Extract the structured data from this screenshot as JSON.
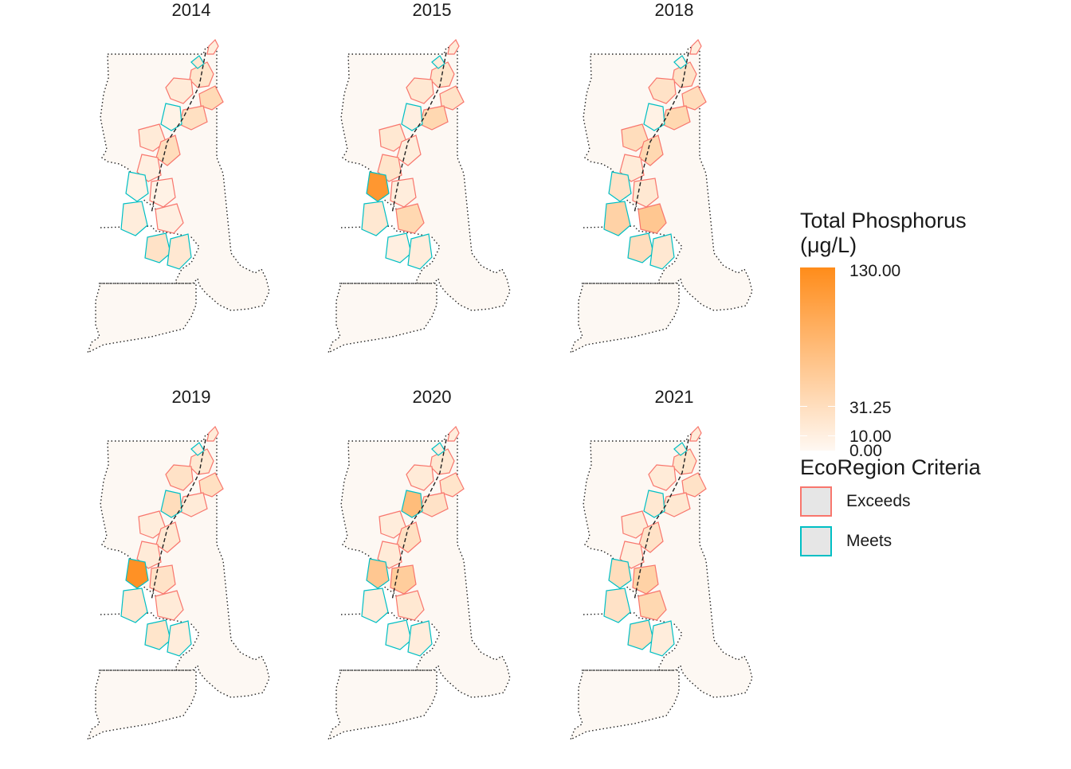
{
  "panels": [
    {
      "year": "2014",
      "fills": {
        "n1": 0.1,
        "n2": 0.18,
        "n3": 0.28,
        "n4": 0.15,
        "n5": 0.12,
        "n6": 0.22,
        "n7": 0.05,
        "n8": 0.12,
        "n9": 0.25,
        "n10": 0.08,
        "s1": 0.05,
        "s2": 0.06,
        "s3": 0.1,
        "s4": 0.08,
        "s5": 0.2,
        "s6": 0.15
      }
    },
    {
      "year": "2015",
      "fills": {
        "n1": 0.12,
        "n2": 0.18,
        "n3": 0.2,
        "n4": 0.1,
        "n5": 0.15,
        "n6": 0.3,
        "n7": 0.08,
        "n8": 0.15,
        "n9": 0.1,
        "n10": 0.18,
        "s1": 0.9,
        "s2": 0.1,
        "s3": 0.15,
        "s4": 0.3,
        "s5": 0.08,
        "s6": 0.1
      }
    },
    {
      "year": "2018",
      "fills": {
        "n1": 0.1,
        "n2": 0.2,
        "n3": 0.25,
        "n4": 0.05,
        "n5": 0.2,
        "n6": 0.3,
        "n7": 0.06,
        "n8": 0.25,
        "n9": 0.3,
        "n10": 0.12,
        "s1": 0.2,
        "s2": 0.15,
        "s3": 0.35,
        "s4": 0.45,
        "s5": 0.25,
        "s6": 0.15
      }
    },
    {
      "year": "2019",
      "fills": {
        "n1": 0.12,
        "n2": 0.15,
        "n3": 0.22,
        "n4": 0.08,
        "n5": 0.2,
        "n6": 0.12,
        "n7": 0.25,
        "n8": 0.1,
        "n9": 0.15,
        "n10": 0.12,
        "s1": 0.95,
        "s2": 0.2,
        "s3": 0.15,
        "s4": 0.12,
        "s5": 0.18,
        "s6": 0.1
      }
    },
    {
      "year": "2020",
      "fills": {
        "n1": 0.1,
        "n2": 0.15,
        "n3": 0.18,
        "n4": 0.1,
        "n5": 0.12,
        "n6": 0.2,
        "n7": 0.55,
        "n8": 0.1,
        "n9": 0.22,
        "n10": 0.12,
        "s1": 0.45,
        "s2": 0.4,
        "s3": 0.1,
        "s4": 0.15,
        "s5": 0.08,
        "s6": 0.1
      }
    },
    {
      "year": "2021",
      "fills": {
        "n1": 0.12,
        "n2": 0.18,
        "n3": 0.2,
        "n4": 0.1,
        "n5": 0.12,
        "n6": 0.15,
        "n7": 0.15,
        "n8": 0.12,
        "n9": 0.2,
        "n10": 0.1,
        "s1": 0.25,
        "s2": 0.35,
        "s3": 0.2,
        "s4": 0.3,
        "s5": 0.25,
        "s6": 0.1
      }
    }
  ],
  "legend": {
    "title_line1": "Total Phosphorus",
    "title_line2": "(μg/L)",
    "ticks": [
      "130.00",
      "31.25",
      "10.00",
      "0.00"
    ],
    "criteria_title": "EcoRegion Criteria",
    "categories": [
      {
        "label": "Exceeds",
        "color": "#f8766d"
      },
      {
        "label": "Meets",
        "color": "#00bfc4"
      }
    ]
  },
  "colors": {
    "low": "#fff8f2",
    "high": "#ff8c1a",
    "background": "#fdf8f3",
    "exceeds": "#f8766d",
    "meets": "#00bfc4"
  }
}
